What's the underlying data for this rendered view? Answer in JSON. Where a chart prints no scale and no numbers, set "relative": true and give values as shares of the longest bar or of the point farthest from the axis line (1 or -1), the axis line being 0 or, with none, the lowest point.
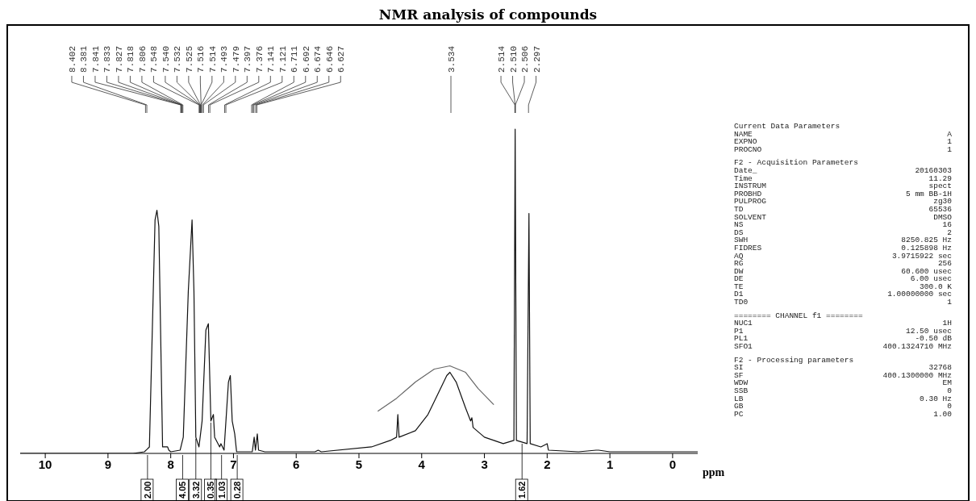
{
  "chart_data": [
    {
      "type": "line",
      "title": "NMR analysis of compounds",
      "xlabel": "ppm",
      "relative": true,
      "xlim": [
        10.4,
        -0.4
      ],
      "xticks": [
        10,
        9,
        8,
        7,
        6,
        5,
        4,
        3,
        2,
        1,
        0
      ],
      "grid": false,
      "marker": "none",
      "series": [
        {
          "color": "#111111",
          "x": [
            10.4,
            8.6,
            8.42,
            8.381,
            8.34,
            8.25,
            8.22,
            8.19,
            8.13,
            8.05,
            8.03,
            8.0,
            7.85,
            7.8,
            7.72,
            7.66,
            7.63,
            7.6,
            7.55,
            7.5,
            7.44,
            7.4,
            7.36,
            7.32,
            7.3,
            7.22,
            7.2,
            7.15,
            7.08,
            7.05,
            7.02,
            6.98,
            6.95,
            6.7,
            6.67,
            6.65,
            6.62,
            6.6,
            6.5,
            5.7,
            5.65,
            5.6,
            4.8,
            4.5,
            4.4,
            4.38,
            4.36,
            4.1,
            3.9,
            3.75,
            3.6,
            3.55,
            3.45,
            3.3,
            3.22,
            3.2,
            3.18,
            3.0,
            2.7,
            2.53,
            2.51,
            2.49,
            2.32,
            2.29,
            2.27,
            2.1,
            2.0,
            1.98,
            1.5,
            1.22,
            1.18,
            1.0,
            -0.4
          ],
          "values": [
            0,
            0,
            0.005,
            0.012,
            0.02,
            0.72,
            0.75,
            0.7,
            0.02,
            0.02,
            0.01,
            0.005,
            0.01,
            0.05,
            0.5,
            0.72,
            0.5,
            0.05,
            0.02,
            0.1,
            0.38,
            0.4,
            0.1,
            0.12,
            0.05,
            0.02,
            0.03,
            0.01,
            0.22,
            0.24,
            0.1,
            0.06,
            0.005,
            0.005,
            0.05,
            0.01,
            0.06,
            0.01,
            0.005,
            0.005,
            0.01,
            0.005,
            0.02,
            0.04,
            0.05,
            0.12,
            0.05,
            0.07,
            0.12,
            0.18,
            0.24,
            0.25,
            0.22,
            0.14,
            0.1,
            0.11,
            0.08,
            0.05,
            0.03,
            0.04,
            1.0,
            0.04,
            0.03,
            0.74,
            0.03,
            0.02,
            0.03,
            0.01,
            0.005,
            0.01,
            0.01,
            0.005,
            0.005
          ]
        },
        {
          "color": "#666666",
          "x": [
            4.7,
            4.4,
            4.1,
            3.8,
            3.55,
            3.3,
            3.1,
            2.95,
            2.85
          ],
          "values": [
            0.13,
            0.17,
            0.22,
            0.26,
            0.27,
            0.25,
            0.2,
            0.17,
            0.15
          ]
        }
      ],
      "annotations": [
        {
          "text": "8.402",
          "x": 8.402
        },
        {
          "text": "8.381",
          "x": 8.381
        },
        {
          "text": "7.841",
          "x": 7.841
        },
        {
          "text": "7.833",
          "x": 7.833
        },
        {
          "text": "7.827",
          "x": 7.827
        },
        {
          "text": "7.818",
          "x": 7.818
        },
        {
          "text": "7.806",
          "x": 7.806
        },
        {
          "text": "7.548",
          "x": 7.548
        },
        {
          "text": "7.540",
          "x": 7.54
        },
        {
          "text": "7.532",
          "x": 7.532
        },
        {
          "text": "7.525",
          "x": 7.525
        },
        {
          "text": "7.516",
          "x": 7.516
        },
        {
          "text": "7.514",
          "x": 7.514
        },
        {
          "text": "7.493",
          "x": 7.493
        },
        {
          "text": "7.479",
          "x": 7.479
        },
        {
          "text": "7.397",
          "x": 7.397
        },
        {
          "text": "7.376",
          "x": 7.376
        },
        {
          "text": "7.141",
          "x": 7.141
        },
        {
          "text": "7.121",
          "x": 7.121
        },
        {
          "text": "6.711",
          "x": 6.711
        },
        {
          "text": "6.692",
          "x": 6.692
        },
        {
          "text": "6.674",
          "x": 6.674
        },
        {
          "text": "6.646",
          "x": 6.646
        },
        {
          "text": "6.627",
          "x": 6.627
        },
        {
          "text": "3.534",
          "x": 3.534
        },
        {
          "text": "2.514",
          "x": 2.514
        },
        {
          "text": "2.510",
          "x": 2.51
        },
        {
          "text": "2.506",
          "x": 2.506
        },
        {
          "text": "2.297",
          "x": 2.297
        },
        {
          "text": "2.00",
          "x": 8.37,
          "y": 0
        },
        {
          "text": "4.05",
          "x": 7.81,
          "y": 0
        },
        {
          "text": "3.32",
          "x": 7.6,
          "y": 0.05
        },
        {
          "text": "0.35",
          "x": 7.36,
          "y": 0.1
        },
        {
          "text": "1.03",
          "x": 7.19,
          "y": 0
        },
        {
          "text": "0.28",
          "x": 6.94,
          "y": 0
        },
        {
          "text": "1.62",
          "x": 2.4,
          "y": 0.035
        }
      ]
    },
    {
      "type": "other",
      "annotations": [
        "Current Data Parameters",
        "NAME  A",
        "EXPNO  1",
        "PROCNO  1",
        "F2 - Acquisition Parameters",
        "Date_  20160303",
        "Time  11.29",
        "INSTRUM  spect",
        "PROBHD  5 mm BB-1H",
        "PULPROG  zg30",
        "TD  65536",
        "SOLVENT  DMSO",
        "NS  16",
        "DS  2",
        "SWH  8250.825 Hz",
        "FIDRES  0.125898 Hz",
        "AQ  3.9715922 sec",
        "RG  256",
        "DW  60.600 usec",
        "DE  6.00 usec",
        "TE  300.0 K",
        "D1  1.00000000 sec",
        "TD0  1",
        "======== CHANNEL f1 ========",
        "NUC1  1H",
        "P1  12.50 usec",
        "PL1  -0.50 dB",
        "SFO1  400.1324710 MHz",
        "F2 - Processing parameters",
        "SI  32768",
        "SF  400.1300000 MHz",
        "WDW  EM",
        "SSB  0",
        "LB  0.30 Hz",
        "GB  0",
        "PC  1.00"
      ]
    }
  ]
}
